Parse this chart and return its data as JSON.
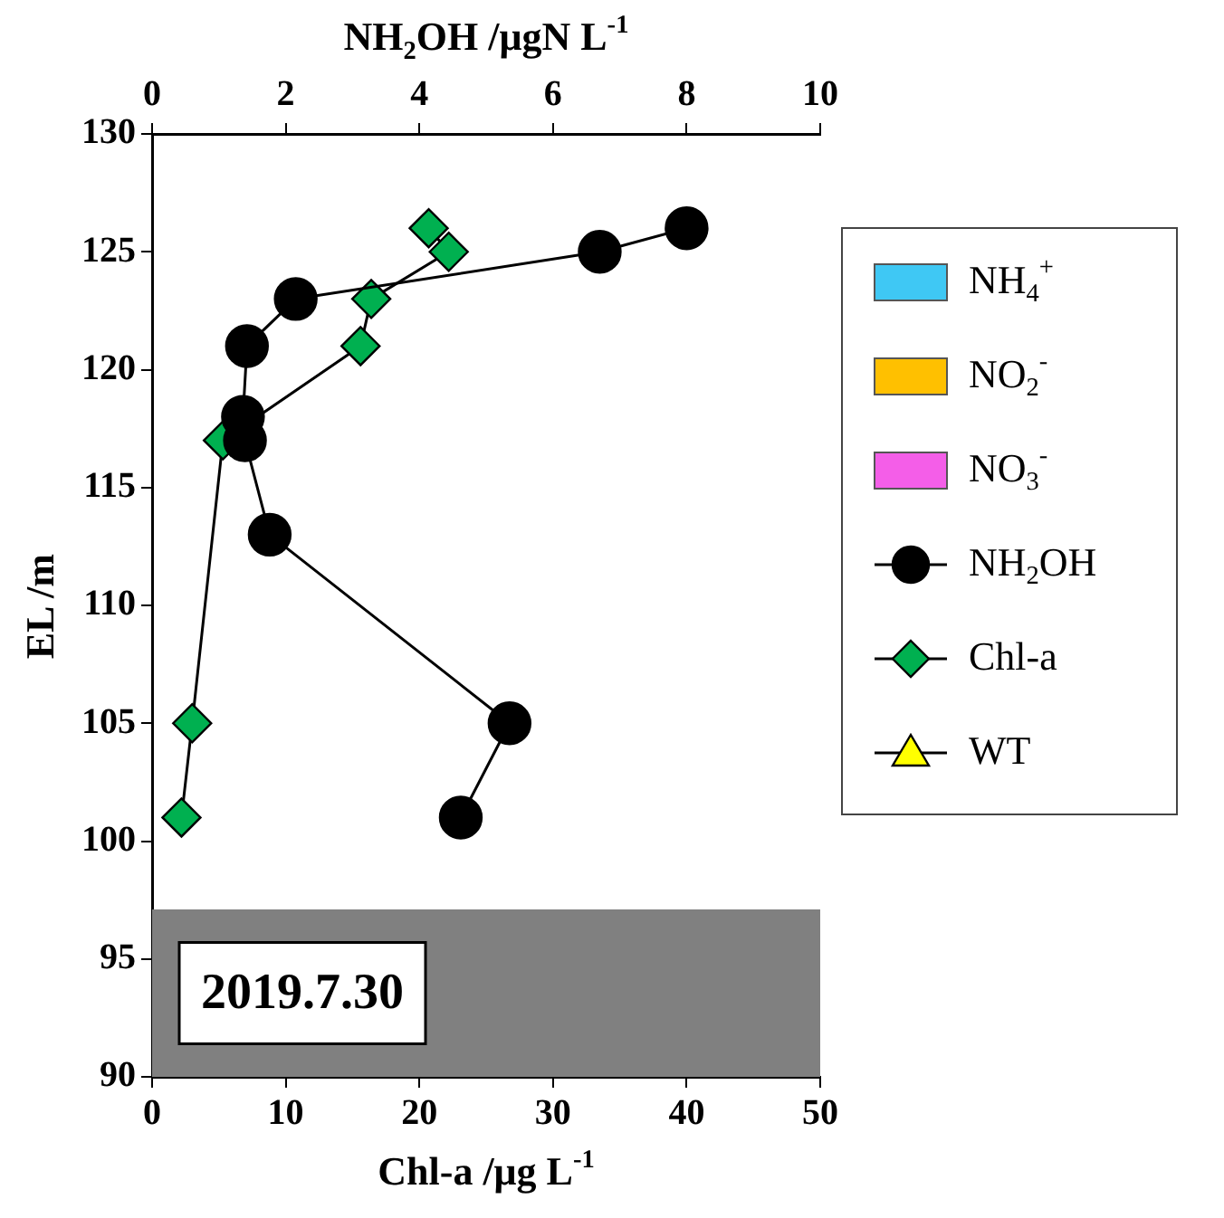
{
  "chart_data": {
    "type": "line",
    "xlabel": "Chl-a /μg L$^{-1}$",
    "x2label": "NH$_{2}$OH /μgN L$^{-1}$",
    "ylabel": "EL /m",
    "xlim": [
      0,
      50
    ],
    "xticks": [
      0,
      10,
      20,
      30,
      40,
      50
    ],
    "x2lim": [
      0,
      10
    ],
    "x2ticks": [
      0,
      2,
      4,
      6,
      8,
      10
    ],
    "ylim": [
      90,
      130
    ],
    "yticks": [
      90,
      95,
      100,
      105,
      110,
      115,
      120,
      125,
      130
    ],
    "grid": false,
    "legend": "right",
    "line_style": "solid",
    "series": [
      {
        "name": "NH$_{4}$$^{+}$",
        "type": "bar",
        "color": "#3fc8f4"
      },
      {
        "name": "NO$_{2}$$^{-}$",
        "type": "bar",
        "color": "#ffc000"
      },
      {
        "name": "NO$_{3}$$^{-}$",
        "type": "bar",
        "color": "#f45ee8"
      },
      {
        "name": "NH$_{2}$OH",
        "marker": "circle",
        "axis": "x2",
        "color": "#000000",
        "x": [
          8.0,
          6.7,
          2.15,
          1.42,
          1.36,
          1.39,
          1.76,
          5.35,
          4.62
        ],
        "values": [
          126,
          125,
          123,
          121,
          118,
          117,
          113,
          105,
          101
        ]
      },
      {
        "name": "Chl-a",
        "marker": "diamond",
        "color": "#00b050",
        "x": [
          20.7,
          22.2,
          16.4,
          15.6,
          null,
          5.3,
          null,
          3.0,
          2.2
        ],
        "values": [
          126,
          125,
          123,
          121,
          null,
          117,
          null,
          105,
          101
        ]
      },
      {
        "name": "WT",
        "marker": "triangle",
        "color": "#ffff00"
      }
    ],
    "bands": [
      {
        "axis": "y",
        "from": 90,
        "to": 97.1,
        "color": "#808080"
      }
    ],
    "annotations": [
      "2019.7.30"
    ]
  }
}
